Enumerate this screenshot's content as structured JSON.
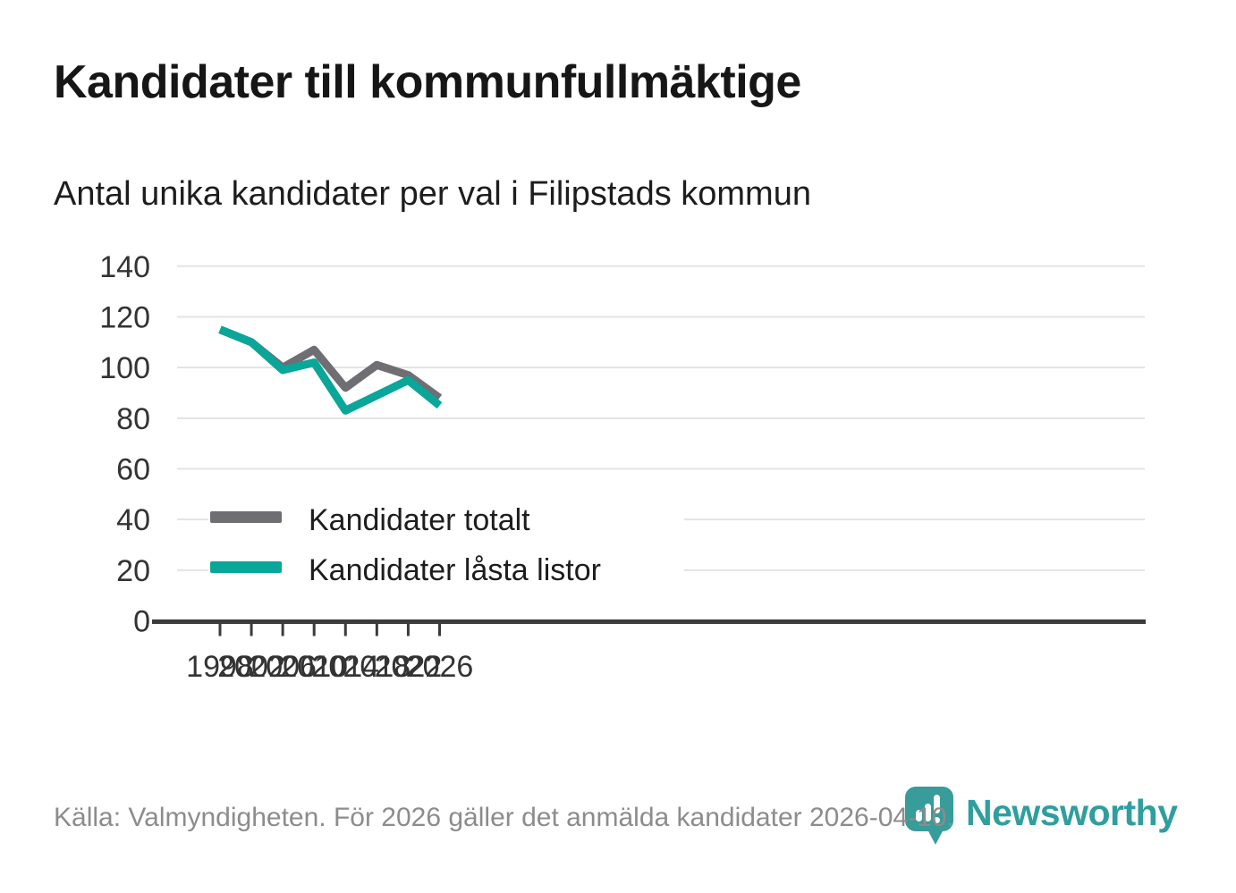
{
  "title": "Kandidater till kommunfullmäktige",
  "subtitle": "Antal unika kandidater per val i Filipstads kommun",
  "footer": {
    "source_text": "Källa: Valmyndigheten. För 2026 gäller det anmälda kandidater 2026-04-10."
  },
  "branding": {
    "logo_icon": "newsworthy-speech-bubble-barchart-icon",
    "wordmark": "Newsworthy",
    "logo_color": "#379c9a",
    "wordmark_color": "#2f9e9e"
  },
  "colors": {
    "series_total": "#6f6e73",
    "series_locked": "#0aa69a",
    "gridline": "#e3e3e3",
    "axis": "#3b3b3b",
    "tick_text": "#333333",
    "legend_text": "#1d1d1d",
    "footer_text": "#8c8c8c"
  },
  "chart_data": {
    "type": "line",
    "title": "Kandidater till kommunfullmäktige",
    "subtitle": "Antal unika kandidater per val i Filipstads kommun",
    "x": [
      1998,
      2002,
      2006,
      2010,
      2014,
      2018,
      2022,
      2026
    ],
    "series": [
      {
        "name": "Kandidater totalt",
        "color": "#6f6e73",
        "values": [
          115,
          110,
          100,
          107,
          92,
          101,
          97,
          88
        ]
      },
      {
        "name": "Kandidater låsta listor",
        "color": "#0aa69a",
        "values": [
          115,
          110,
          99,
          102,
          83,
          89,
          95,
          85
        ]
      }
    ],
    "xlabel": "",
    "ylabel": "",
    "ylim": [
      0,
      140
    ],
    "yticks": [
      0,
      20,
      40,
      60,
      80,
      100,
      120,
      140
    ],
    "grid": true,
    "legend_position": "inside-bottom-left"
  }
}
